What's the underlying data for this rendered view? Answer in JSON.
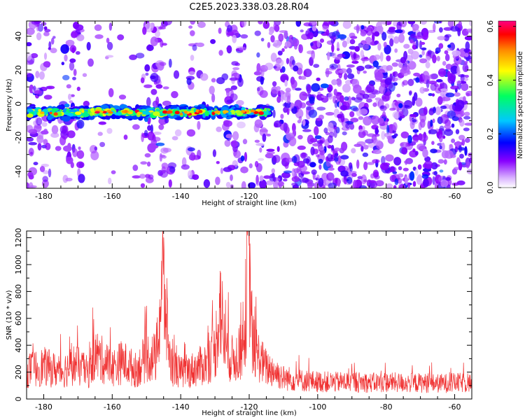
{
  "title": "C2E5.2023.338.03.28.R04",
  "chart_data": [
    {
      "type": "heatmap",
      "xlabel": "Height of straight line (km)",
      "ylabel": "Frequency (Hz)",
      "xlim": [
        -185,
        -55
      ],
      "ylim": [
        -50,
        49
      ],
      "x_ticks": [
        -180,
        -160,
        -140,
        -120,
        -100,
        -80,
        -60
      ],
      "y_ticks": [
        -40,
        -20,
        0,
        20,
        40
      ],
      "colorbar": {
        "label": "Normalized spectral amplitude",
        "range": [
          0.0,
          0.62
        ],
        "ticks": [
          "0.0",
          "0.2",
          "0.4",
          "0.6"
        ],
        "colormap": [
          "#ffffff",
          "#d8b0ff",
          "#8800ff",
          "#0000ff",
          "#00c8ff",
          "#00ff60",
          "#ffff00",
          "#ff9000",
          "#ff0000",
          "#ff0080"
        ]
      },
      "band": {
        "x_range": [
          -185,
          -114
        ],
        "freq_center": -5,
        "freq_halfwidth": 3,
        "peak_value": 0.6
      },
      "background_noise": {
        "dense_region_x_min": -113,
        "max_value": 0.2
      }
    },
    {
      "type": "line",
      "xlabel": "Height of straight line (km)",
      "ylabel": "SNR (10 * v/v)",
      "xlim": [
        -185,
        -55
      ],
      "ylim": [
        0,
        1250
      ],
      "x_ticks": [
        -180,
        -160,
        -140,
        -120,
        -100,
        -80,
        -60
      ],
      "y_ticks": [
        0,
        200,
        400,
        600,
        800,
        1000,
        1200
      ],
      "color": "#f03232",
      "series": [
        {
          "x": [
            -185,
            -180,
            -175,
            -171,
            -167,
            -165,
            -160,
            -157,
            -153,
            -150,
            -147,
            -145.3,
            -143,
            -140,
            -137,
            -133,
            -130,
            -128.5,
            -127,
            -125,
            -123,
            -121.5,
            -120.2,
            -119,
            -117,
            -115,
            -113,
            -110,
            -105,
            -100,
            -95,
            -90,
            -85,
            -80,
            -75,
            -70,
            -65,
            -60,
            -55
          ],
          "y": [
            230,
            260,
            220,
            280,
            210,
            360,
            250,
            300,
            230,
            340,
            330,
            1000,
            280,
            210,
            230,
            280,
            380,
            780,
            400,
            320,
            350,
            440,
            1240,
            430,
            330,
            250,
            230,
            170,
            150,
            140,
            135,
            140,
            130,
            135,
            130,
            130,
            125,
            130,
            130
          ]
        }
      ]
    }
  ]
}
